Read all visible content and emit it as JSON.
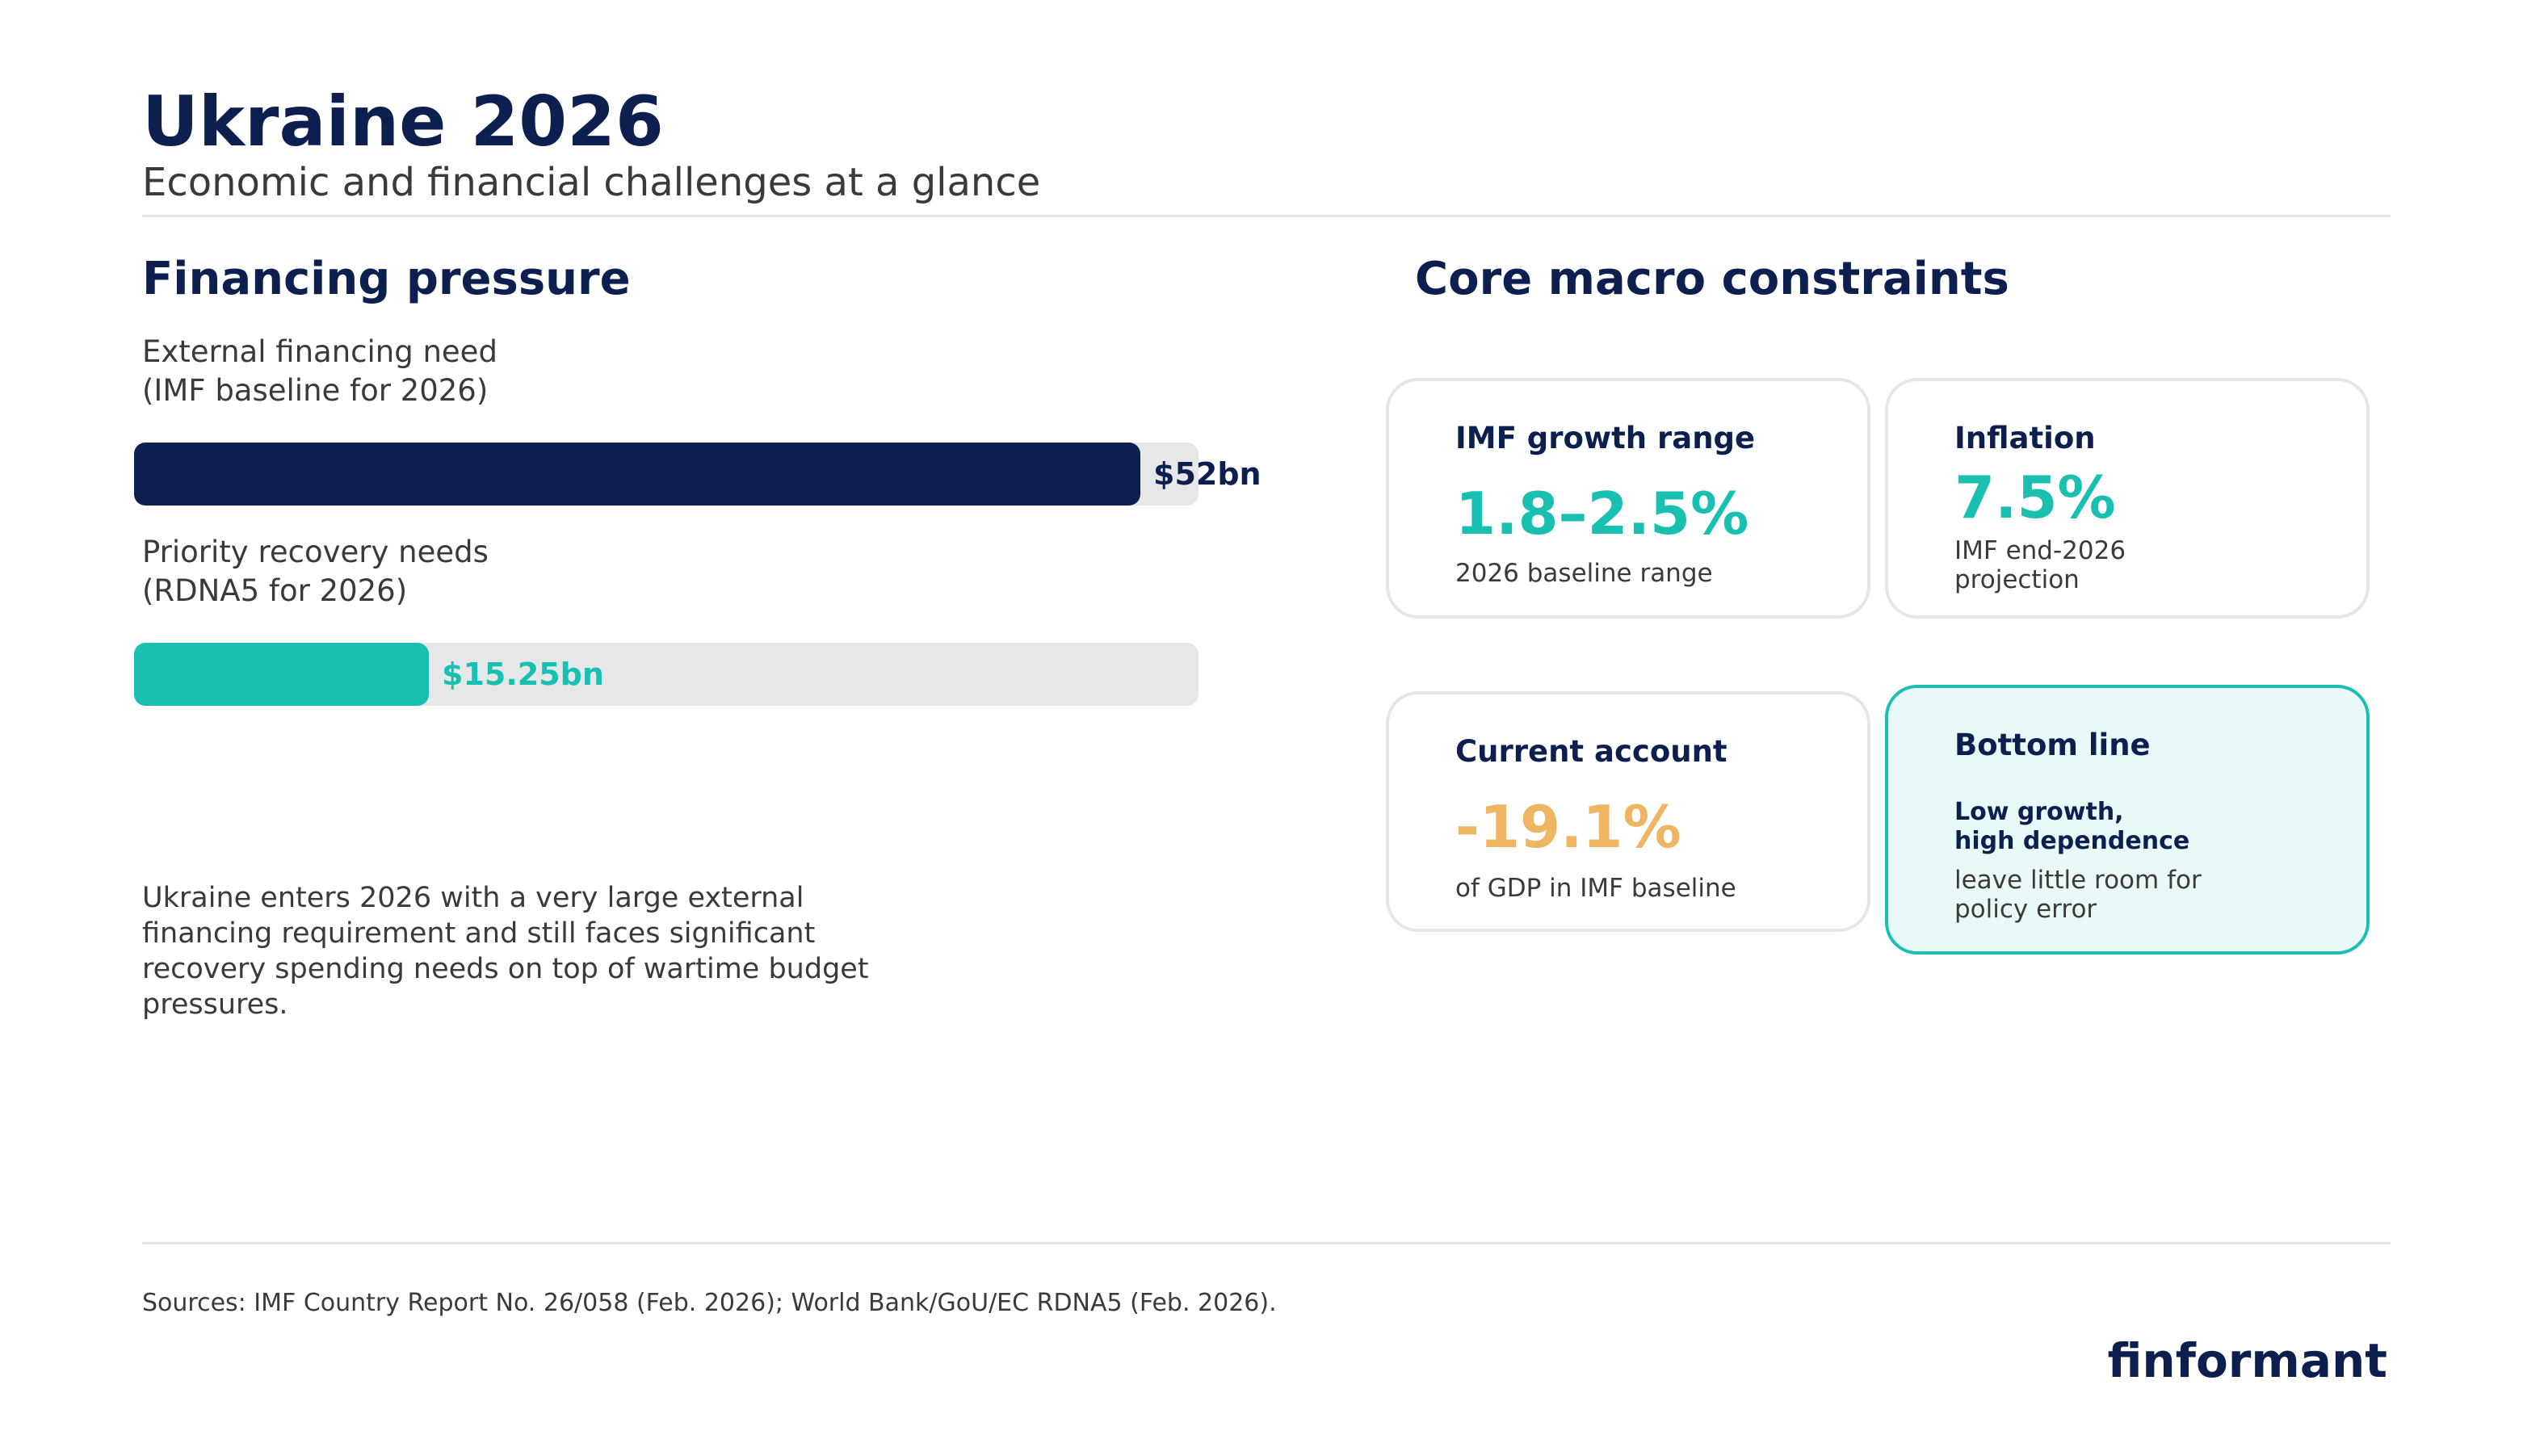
{
  "header": {
    "title": "Ukraine 2026",
    "subtitle": "Economic and financial challenges at a glance"
  },
  "financing": {
    "section_title": "Financing pressure",
    "narrative": "Ukraine enters 2026 with a very large external financing requirement and still faces significant recovery spending needs on top of wartime budget pressures."
  },
  "chart_data": {
    "type": "bar",
    "orientation": "horizontal",
    "title": "Financing pressure",
    "categories": [
      "External financing need (IMF baseline for 2026)",
      "Priority recovery needs (RDNA5 for 2026)"
    ],
    "values": [
      52,
      15.25
    ],
    "unit": "$bn",
    "xlim": [
      0,
      55
    ],
    "bars": [
      {
        "label_line1": "External financing need",
        "label_line2": "(IMF baseline for 2026)",
        "value": 52,
        "value_label": "$52bn",
        "color": "#0d1f4f"
      },
      {
        "label_line1": "Priority recovery needs",
        "label_line2": "(RDNA5 for 2026)",
        "value": 15.25,
        "value_label": "$15.25bn",
        "color": "#19bfb0"
      }
    ]
  },
  "macro": {
    "section_title": "Core macro constraints",
    "cards": [
      {
        "heading": "IMF growth range",
        "value": "1.8–2.5%",
        "value_color": "#19bfb0",
        "note": "2026 baseline range"
      },
      {
        "heading": "Inflation",
        "value": "7.5%",
        "value_color": "#19bfb0",
        "note_line1": "IMF end-2026",
        "note_line2": "projection"
      },
      {
        "heading": "Current account",
        "value": "-19.1%",
        "value_color": "#f0b563",
        "note": "of GDP in IMF baseline"
      },
      {
        "heading": "Bottom line",
        "strong_line1": "Low growth,",
        "strong_line2": "high dependence",
        "note_line1": "leave little room for",
        "note_line2": "policy error"
      }
    ]
  },
  "footer": {
    "sources": "Sources: IMF Country Report No. 26/058 (Feb. 2026); World Bank/GoU/EC RDNA5 (Feb. 2026).",
    "brand": "finformant"
  }
}
